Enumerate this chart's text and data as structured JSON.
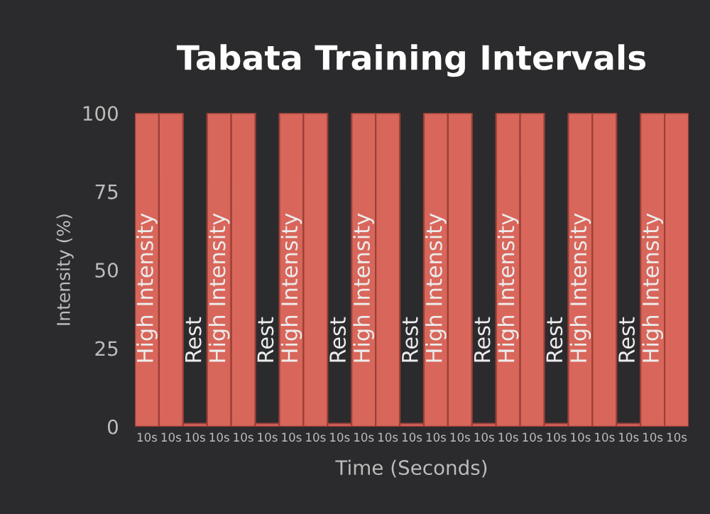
{
  "chart_data": {
    "type": "bar",
    "title": "Tabata Training Intervals",
    "xlabel": "Time (Seconds)",
    "ylabel": "Intensity (%)",
    "categories": [
      "10s",
      "10s",
      "10s",
      "10s",
      "10s",
      "10s",
      "10s",
      "10s",
      "10s",
      "10s",
      "10s",
      "10s",
      "10s",
      "10s",
      "10s",
      "10s",
      "10s",
      "10s",
      "10s",
      "10s",
      "10s",
      "10s",
      "10s"
    ],
    "values": [
      100,
      100,
      1,
      100,
      100,
      1,
      100,
      100,
      1,
      100,
      100,
      1,
      100,
      100,
      1,
      100,
      100,
      1,
      100,
      100,
      1,
      100,
      100
    ],
    "value_labels": [
      "High Intensity",
      null,
      "Rest",
      "High Intensity",
      null,
      "Rest",
      "High Intensity",
      null,
      "Rest",
      "High Intensity",
      null,
      "Rest",
      "High Intensity",
      null,
      "Rest",
      "High Intensity",
      null,
      "Rest",
      "High Intensity",
      null,
      "Rest",
      "High Intensity",
      null
    ],
    "color": "#d8665a",
    "ylim": [
      0,
      100
    ],
    "yticks": [
      0,
      25,
      50,
      75,
      100
    ],
    "grid": false,
    "legend": false
  }
}
